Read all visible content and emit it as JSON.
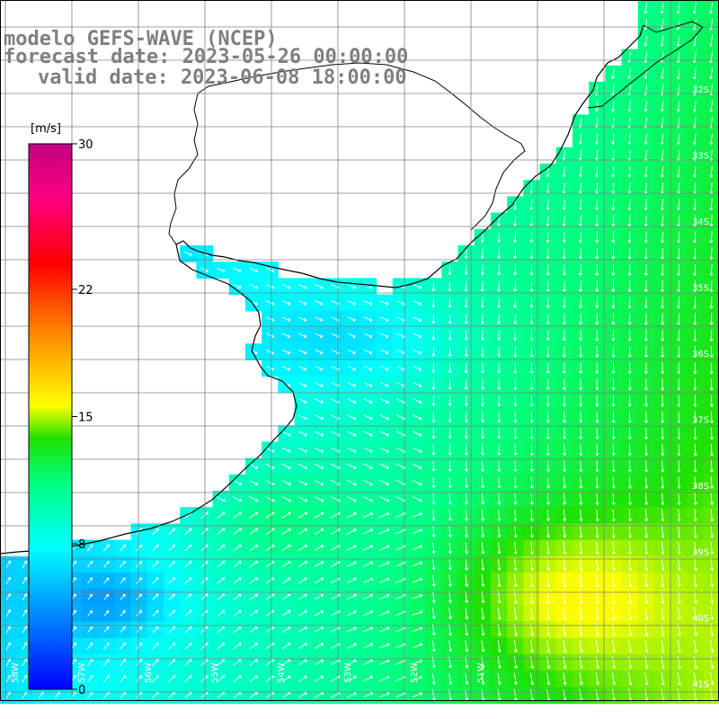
{
  "title": {
    "line1": "modelo GEFS-WAVE (NCEP)",
    "line2": "forecast date: 2023-05-26 00:00:00",
    "line3": "valid date: 2023-06-08 18:00:00"
  },
  "colorbar": {
    "unit": "[m/s]",
    "min": 0,
    "max": 30,
    "ticks": [
      "0",
      "8",
      "15",
      "22",
      "30"
    ],
    "tick_values": [
      0,
      8,
      15,
      22,
      30
    ],
    "colors": [
      "#0000ff",
      "#00a0ff",
      "#00ffff",
      "#00ff80",
      "#00ff00",
      "#80ff00",
      "#ffff00",
      "#ffa000",
      "#ff4000",
      "#ff0000",
      "#ff0080",
      "#c00080"
    ]
  },
  "lat_labels": [
    "32S",
    "33S",
    "34S",
    "35S",
    "36S",
    "37S",
    "38S",
    "39S",
    "40S",
    "41S"
  ],
  "lon_labels": [
    "58W",
    "57W",
    "56W",
    "55W",
    "54W",
    "53W",
    "52W",
    "51W"
  ],
  "chart_data": {
    "type": "heatmap",
    "variable": "wind speed",
    "unit": "m/s",
    "lon_range": [
      -59,
      -50.6
    ],
    "lat_range": [
      -41.3,
      -31.3
    ],
    "land_color": "#ffffff"
  }
}
